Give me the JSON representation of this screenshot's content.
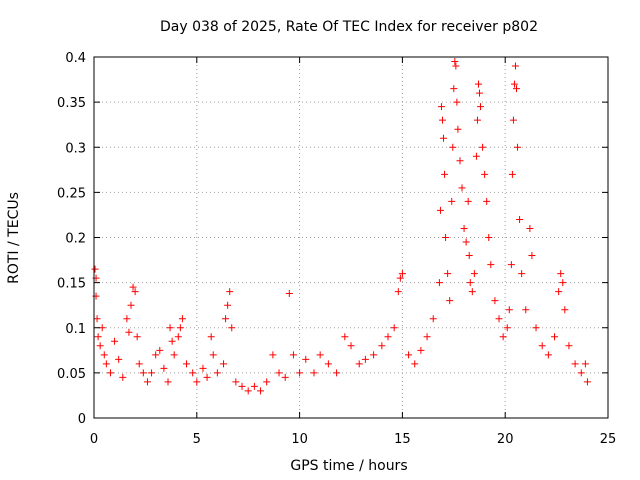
{
  "chart_data": {
    "type": "scatter",
    "title": "Day 038 of 2025, Rate Of TEC Index for receiver p802",
    "xlabel": "GPS time / hours",
    "ylabel": "ROTI / TECUs",
    "xlim": [
      0,
      25
    ],
    "ylim": [
      0,
      0.4
    ],
    "xticks": [
      0,
      5,
      10,
      15,
      20,
      25
    ],
    "xtick_labels": [
      "0",
      "5",
      "10",
      "15",
      "20",
      "25"
    ],
    "yticks": [
      0,
      0.05,
      0.1,
      0.15,
      0.2,
      0.25,
      0.3,
      0.35,
      0.4
    ],
    "ytick_labels": [
      "0",
      "0.05",
      "0.1",
      "0.15",
      "0.2",
      "0.25",
      "0.3",
      "0.35",
      "0.4"
    ],
    "grid": true,
    "marker": "+",
    "marker_color": "#ff0000",
    "series": [
      {
        "name": "ROTI",
        "points": [
          [
            0.05,
            0.165
          ],
          [
            0.1,
            0.155
          ],
          [
            0.1,
            0.135
          ],
          [
            0.15,
            0.11
          ],
          [
            0.2,
            0.09
          ],
          [
            0.3,
            0.08
          ],
          [
            0.4,
            0.1
          ],
          [
            0.5,
            0.07
          ],
          [
            0.6,
            0.06
          ],
          [
            0.8,
            0.05
          ],
          [
            1.0,
            0.085
          ],
          [
            1.2,
            0.065
          ],
          [
            1.4,
            0.045
          ],
          [
            1.6,
            0.11
          ],
          [
            1.7,
            0.095
          ],
          [
            1.8,
            0.125
          ],
          [
            1.9,
            0.145
          ],
          [
            2.0,
            0.14
          ],
          [
            2.1,
            0.09
          ],
          [
            2.2,
            0.06
          ],
          [
            2.4,
            0.05
          ],
          [
            2.6,
            0.04
          ],
          [
            2.8,
            0.05
          ],
          [
            3.0,
            0.07
          ],
          [
            3.2,
            0.075
          ],
          [
            3.4,
            0.055
          ],
          [
            3.6,
            0.04
          ],
          [
            3.7,
            0.1
          ],
          [
            3.8,
            0.085
          ],
          [
            3.9,
            0.07
          ],
          [
            4.1,
            0.09
          ],
          [
            4.2,
            0.1
          ],
          [
            4.3,
            0.11
          ],
          [
            4.5,
            0.06
          ],
          [
            4.8,
            0.05
          ],
          [
            5.0,
            0.04
          ],
          [
            5.3,
            0.055
          ],
          [
            5.5,
            0.045
          ],
          [
            5.7,
            0.09
          ],
          [
            5.8,
            0.07
          ],
          [
            6.0,
            0.05
          ],
          [
            6.3,
            0.06
          ],
          [
            6.4,
            0.11
          ],
          [
            6.5,
            0.125
          ],
          [
            6.6,
            0.14
          ],
          [
            6.7,
            0.1
          ],
          [
            6.9,
            0.04
          ],
          [
            7.2,
            0.035
          ],
          [
            7.5,
            0.03
          ],
          [
            7.8,
            0.035
          ],
          [
            8.1,
            0.03
          ],
          [
            8.4,
            0.04
          ],
          [
            8.7,
            0.07
          ],
          [
            9.0,
            0.05
          ],
          [
            9.3,
            0.045
          ],
          [
            9.5,
            0.138
          ],
          [
            9.7,
            0.07
          ],
          [
            10.0,
            0.05
          ],
          [
            10.3,
            0.065
          ],
          [
            10.7,
            0.05
          ],
          [
            11.0,
            0.07
          ],
          [
            11.4,
            0.06
          ],
          [
            11.8,
            0.05
          ],
          [
            12.2,
            0.09
          ],
          [
            12.5,
            0.08
          ],
          [
            12.9,
            0.06
          ],
          [
            13.2,
            0.065
          ],
          [
            13.6,
            0.07
          ],
          [
            14.0,
            0.08
          ],
          [
            14.3,
            0.09
          ],
          [
            14.6,
            0.1
          ],
          [
            14.8,
            0.14
          ],
          [
            14.9,
            0.155
          ],
          [
            15.0,
            0.16
          ],
          [
            15.3,
            0.07
          ],
          [
            15.6,
            0.06
          ],
          [
            15.9,
            0.075
          ],
          [
            16.2,
            0.09
          ],
          [
            16.5,
            0.11
          ],
          [
            16.8,
            0.15
          ],
          [
            16.85,
            0.23
          ],
          [
            16.9,
            0.345
          ],
          [
            16.95,
            0.33
          ],
          [
            17.0,
            0.31
          ],
          [
            17.05,
            0.27
          ],
          [
            17.1,
            0.2
          ],
          [
            17.2,
            0.16
          ],
          [
            17.3,
            0.13
          ],
          [
            17.4,
            0.24
          ],
          [
            17.45,
            0.3
          ],
          [
            17.5,
            0.365
          ],
          [
            17.55,
            0.395
          ],
          [
            17.6,
            0.39
          ],
          [
            17.65,
            0.35
          ],
          [
            17.7,
            0.32
          ],
          [
            17.8,
            0.285
          ],
          [
            17.9,
            0.255
          ],
          [
            18.0,
            0.21
          ],
          [
            18.1,
            0.195
          ],
          [
            18.2,
            0.24
          ],
          [
            18.25,
            0.18
          ],
          [
            18.3,
            0.15
          ],
          [
            18.4,
            0.14
          ],
          [
            18.5,
            0.16
          ],
          [
            18.6,
            0.29
          ],
          [
            18.65,
            0.33
          ],
          [
            18.7,
            0.37
          ],
          [
            18.75,
            0.36
          ],
          [
            18.8,
            0.345
          ],
          [
            18.9,
            0.3
          ],
          [
            19.0,
            0.27
          ],
          [
            19.1,
            0.24
          ],
          [
            19.2,
            0.2
          ],
          [
            19.3,
            0.17
          ],
          [
            19.5,
            0.13
          ],
          [
            19.7,
            0.11
          ],
          [
            19.9,
            0.09
          ],
          [
            20.1,
            0.1
          ],
          [
            20.2,
            0.12
          ],
          [
            20.3,
            0.17
          ],
          [
            20.35,
            0.27
          ],
          [
            20.4,
            0.33
          ],
          [
            20.45,
            0.37
          ],
          [
            20.5,
            0.39
          ],
          [
            20.55,
            0.365
          ],
          [
            20.6,
            0.3
          ],
          [
            20.7,
            0.22
          ],
          [
            20.8,
            0.16
          ],
          [
            21.0,
            0.12
          ],
          [
            21.2,
            0.21
          ],
          [
            21.3,
            0.18
          ],
          [
            21.5,
            0.1
          ],
          [
            21.8,
            0.08
          ],
          [
            22.1,
            0.07
          ],
          [
            22.4,
            0.09
          ],
          [
            22.6,
            0.14
          ],
          [
            22.7,
            0.16
          ],
          [
            22.8,
            0.15
          ],
          [
            22.9,
            0.12
          ],
          [
            23.1,
            0.08
          ],
          [
            23.4,
            0.06
          ],
          [
            23.7,
            0.05
          ],
          [
            23.9,
            0.06
          ],
          [
            24.0,
            0.04
          ]
        ]
      }
    ]
  }
}
